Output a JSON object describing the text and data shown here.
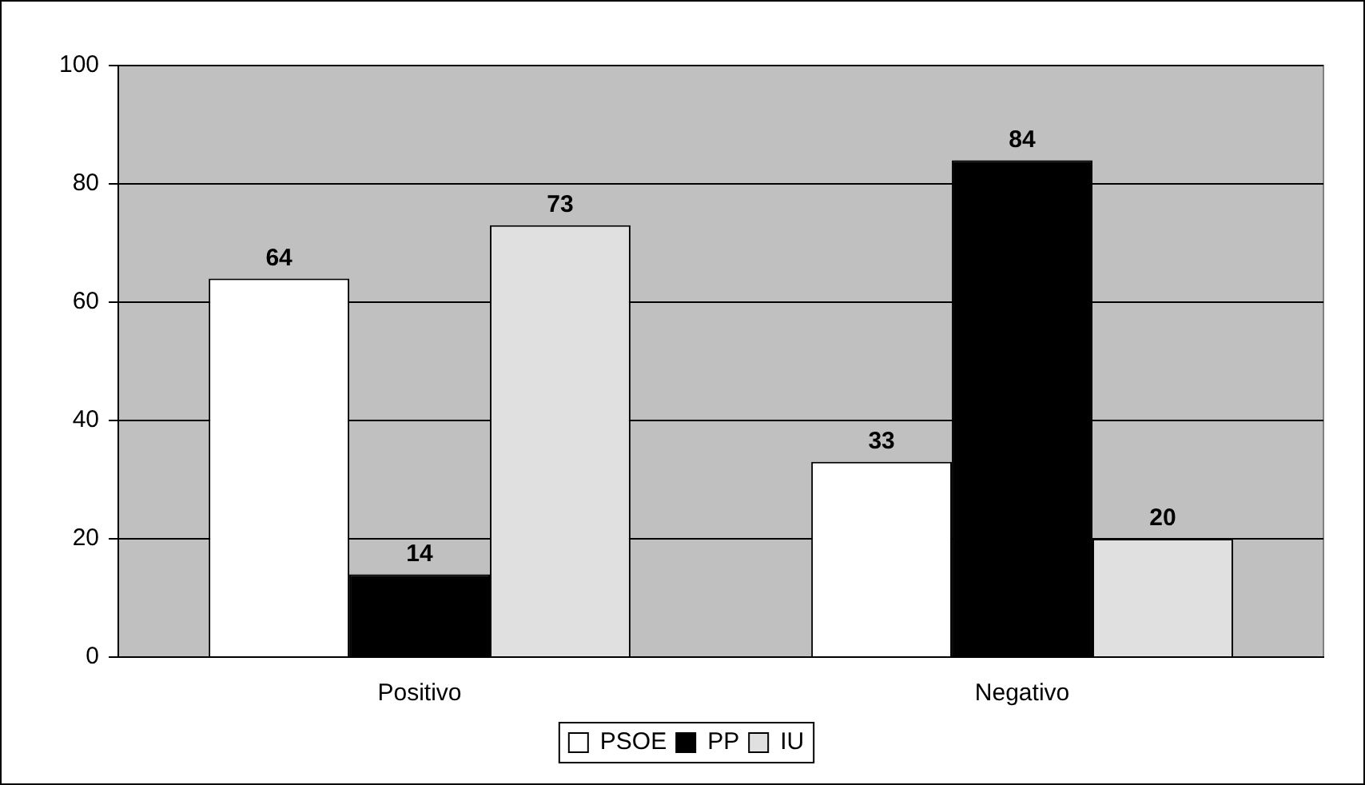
{
  "chart_data": {
    "type": "bar",
    "categories": [
      "Positivo",
      "Negativo"
    ],
    "series": [
      {
        "name": "PSOE",
        "color": "#ffffff",
        "values": [
          64,
          33
        ]
      },
      {
        "name": "PP",
        "color": "#000000",
        "values": [
          14,
          84
        ]
      },
      {
        "name": "IU",
        "color": "#e0e0e0",
        "values": [
          73,
          20
        ]
      }
    ],
    "ylim": [
      0,
      100
    ],
    "yticks": [
      0,
      20,
      40,
      60,
      80,
      100
    ],
    "grid": "y",
    "legend": "bottom",
    "data_labels": true
  }
}
